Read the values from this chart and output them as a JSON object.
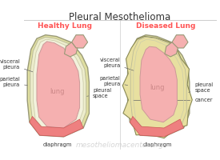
{
  "title": "Pleural Mesothelioma",
  "title_fontsize": 8.5,
  "title_color": "#333333",
  "bg_color": "#ffffff",
  "healthy_label": "Healthy Lung",
  "diseased_label": "Diseased Lung",
  "label_color": "#ff5555",
  "label_fontsize": 6.5,
  "divider_color": "#cccccc",
  "lung_fill": "#f5b0b0",
  "pleura_outer_fill": "#e0dfa0",
  "pleura_mid_fill": "#ededcc",
  "pleura_inner_fill": "#f2f2dc",
  "pleura_outer_stroke": "#999977",
  "pleura_mid_stroke": "#bbbb99",
  "pleura_inner_stroke": "#ccccaa",
  "lung_stroke": "#cc9999",
  "diaphragm_fill": "#ee8080",
  "diaphragm_stroke": "#cc5555",
  "cancer_fill": "#e8e0a0",
  "cancer_stroke": "#888855",
  "bronchi_fill": "#f5b0b0",
  "bronchi_stroke": "#999977",
  "annotation_fontsize": 4.8,
  "annotation_color": "#333333",
  "lung_label_color": "#cc8888",
  "lung_label_fontsize": 6,
  "watermark": "mesotheliomacenter.org",
  "watermark_color": "#cccccc",
  "watermark_fontsize": 6.5
}
